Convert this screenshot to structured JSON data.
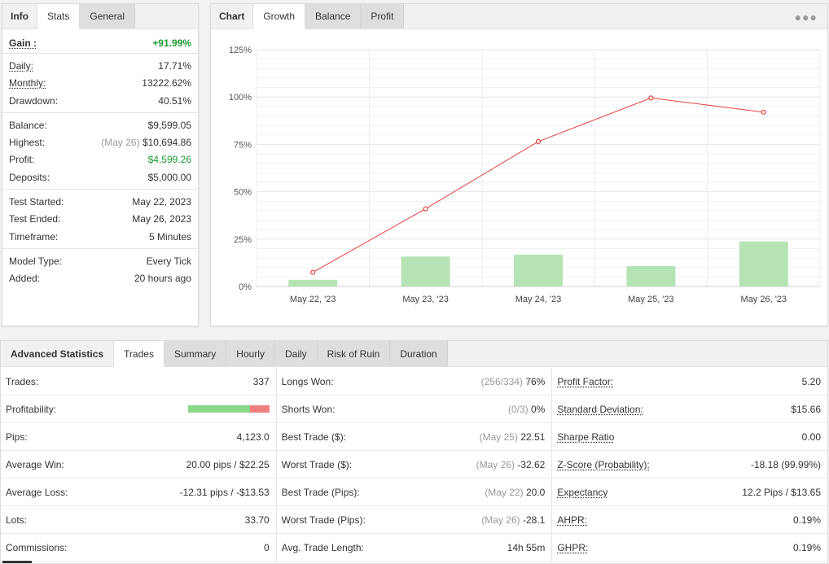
{
  "left": {
    "tabs": [
      "Info",
      "Stats",
      "General"
    ],
    "gain_label": "Gain :",
    "gain_value": "+91.99%",
    "rows1": [
      {
        "label": "Daily:",
        "value": "17.71%"
      },
      {
        "label": "Monthly:",
        "value": "13222.62%"
      },
      {
        "label": "Drawdown:",
        "value": "40.51%"
      }
    ],
    "balance": {
      "label": "Balance:",
      "value": "$9,599.05"
    },
    "highest": {
      "label": "Highest:",
      "date": "(May 26)",
      "value": "$10,694.86"
    },
    "profit": {
      "label": "Profit:",
      "value": "$4,599.26"
    },
    "deposits": {
      "label": "Deposits:",
      "value": "$5,000.00"
    },
    "rows3": [
      {
        "label": "Test Started:",
        "value": "May 22, 2023"
      },
      {
        "label": "Test Ended:",
        "value": "May 26, 2023"
      },
      {
        "label": "Timeframe:",
        "value": "5 Minutes"
      }
    ],
    "rows4": [
      {
        "label": "Model Type:",
        "value": "Every Tick"
      },
      {
        "label": "Added:",
        "value": "20 hours ago"
      }
    ]
  },
  "chart_panel": {
    "tabs": [
      "Chart",
      "Growth",
      "Balance",
      "Profit"
    ],
    "menu_icon": "more-dots-icon"
  },
  "chart_data": {
    "type": "bar+line",
    "categories": [
      "May 22, '23",
      "May 23, '23",
      "May 24, '23",
      "May 25, '23",
      "May 26, '23"
    ],
    "series": [
      {
        "type": "bar",
        "values": [
          3.5,
          15.8,
          16.8,
          10.8,
          23.8
        ],
        "color": "#b6e3b6"
      },
      {
        "type": "line",
        "values": [
          7.5,
          41,
          76.5,
          99.5,
          92
        ],
        "color": "#e0413a"
      }
    ],
    "yticks": [
      "0%",
      "25%",
      "50%",
      "75%",
      "100%",
      "125%"
    ],
    "ylim": [
      0,
      125
    ],
    "grid": true
  },
  "advanced": {
    "tabs": [
      "Advanced Statistics",
      "Trades",
      "Summary",
      "Hourly",
      "Daily",
      "Risk of Ruin",
      "Duration"
    ],
    "col1": [
      {
        "label": "Trades:",
        "value": "337"
      },
      {
        "label": "Profitability:",
        "value": "",
        "profitable_fraction": 0.76
      },
      {
        "label": "Pips:",
        "value": "4,123.0"
      },
      {
        "label": "Average Win:",
        "value": "20.00 pips / $22.25"
      },
      {
        "label": "Average Loss:",
        "value": "-12.31 pips / -$13.53"
      },
      {
        "label": "Lots:",
        "value": "33.70"
      },
      {
        "label": "Commissions:",
        "value": "0"
      }
    ],
    "col2": [
      {
        "label": "Longs Won:",
        "muted": "(256/334)",
        "value": "76%"
      },
      {
        "label": "Shorts Won:",
        "muted": "(0/3)",
        "value": "0%"
      },
      {
        "label": "Best Trade ($):",
        "muted": "(May 25)",
        "value": "22.51"
      },
      {
        "label": "Worst Trade ($):",
        "muted": "(May 26)",
        "value": "-32.62"
      },
      {
        "label": "Best Trade (Pips):",
        "muted": "(May 22)",
        "value": "20.0"
      },
      {
        "label": "Worst Trade (Pips):",
        "muted": "(May 26)",
        "value": "-28.1"
      },
      {
        "label": "Avg. Trade Length:",
        "muted": "",
        "value": "14h 55m"
      }
    ],
    "col3": [
      {
        "label": "Profit Factor:",
        "value": "5.20"
      },
      {
        "label": "Standard Deviation:",
        "value": "$15.66"
      },
      {
        "label": "Sharpe Ratio",
        "value": "0.00"
      },
      {
        "label": "Z-Score (Probability):",
        "value": "-18.18 (99.99%)"
      },
      {
        "label": "Expectancy",
        "value": "12.2 Pips / $13.65"
      },
      {
        "label": "AHPR:",
        "value": "0.19%"
      },
      {
        "label": "GHPR:",
        "value": "0.19%"
      }
    ]
  }
}
